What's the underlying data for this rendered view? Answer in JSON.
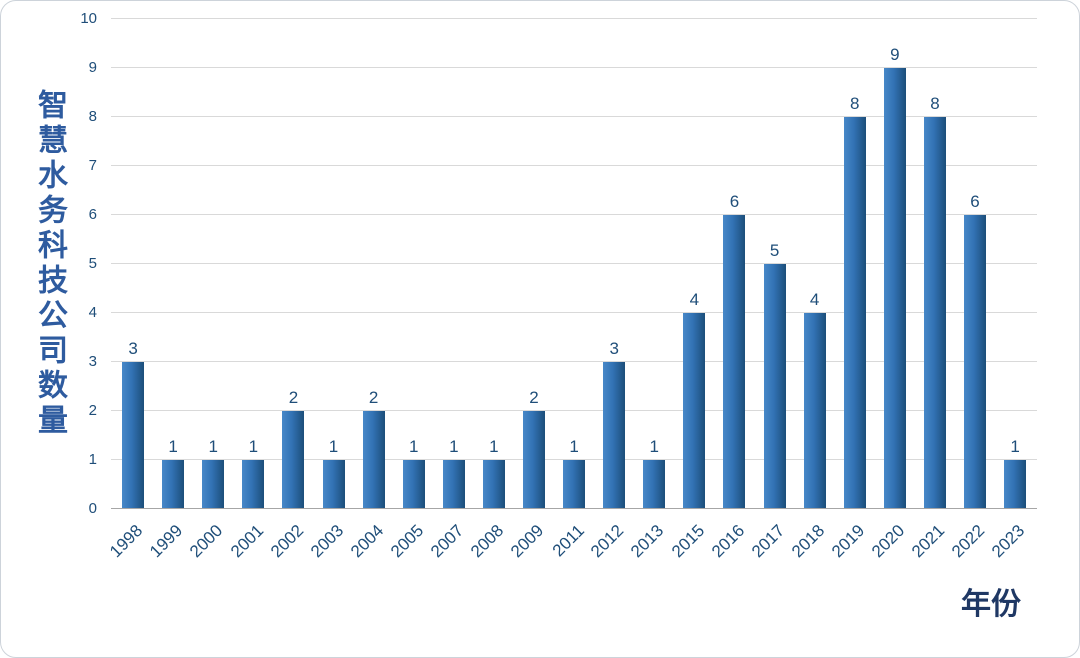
{
  "chart_data": {
    "type": "bar",
    "title": "",
    "categories": [
      "1998",
      "1999",
      "2000",
      "2001",
      "2002",
      "2003",
      "2004",
      "2005",
      "2007",
      "2008",
      "2009",
      "2011",
      "2012",
      "2013",
      "2015",
      "2016",
      "2017",
      "2018",
      "2019",
      "2020",
      "2021",
      "2022",
      "2023"
    ],
    "values": [
      3,
      1,
      1,
      1,
      2,
      1,
      2,
      1,
      1,
      1,
      2,
      1,
      3,
      1,
      4,
      6,
      5,
      4,
      8,
      9,
      8,
      6,
      1
    ],
    "xlabel": "年份",
    "ylabel": "智慧水务科技公司数量",
    "ylim": [
      0,
      10
    ],
    "ytick_step": 1,
    "yticks": [
      0,
      1,
      2,
      3,
      4,
      5,
      6,
      7,
      8,
      9,
      10
    ],
    "grid": true,
    "legend": "none",
    "value_labels_shown": true,
    "colors": {
      "text": "#1f4e79",
      "ylabel": "#2e5b9f",
      "xlabel": "#1f3864",
      "grid": "#d9d9d9",
      "baseline": "#a6a6a6",
      "bar_gradient_left": "#4788c8",
      "bar_gradient_mid": "#3272b4",
      "bar_gradient_right": "#1c4e79"
    }
  }
}
